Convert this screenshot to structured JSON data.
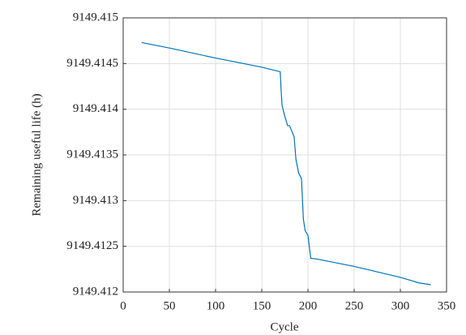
{
  "chart_data": {
    "type": "line",
    "x_label": "Cycle",
    "y_label": "Remaining useful life (h)",
    "x": [
      20,
      50,
      100,
      150,
      170,
      171,
      172,
      175,
      178,
      180,
      185,
      187,
      190,
      193,
      195,
      197,
      200,
      203,
      210,
      250,
      300,
      320,
      333
    ],
    "series": [
      {
        "color": "#0072bd",
        "values": [
          9149.41473,
          9149.41467,
          9149.41456,
          9149.41446,
          9149.41441,
          9149.4142,
          9149.41404,
          9149.41392,
          9149.41382,
          9149.41382,
          9149.4137,
          9149.41345,
          9149.4133,
          9149.41324,
          9149.4128,
          9149.41267,
          9149.41262,
          9149.41237,
          9149.41236,
          9149.41228,
          9149.41216,
          9149.4121,
          9149.41208
        ]
      }
    ],
    "xlim": [
      0,
      350
    ],
    "xticks": [
      0,
      50,
      100,
      150,
      200,
      250,
      300,
      350
    ],
    "ylim": [
      9149.412,
      9149.415
    ],
    "yticks": [
      9149.412,
      9149.4125,
      9149.413,
      9149.4135,
      9149.414,
      9149.4145,
      9149.415
    ],
    "grid": true
  }
}
